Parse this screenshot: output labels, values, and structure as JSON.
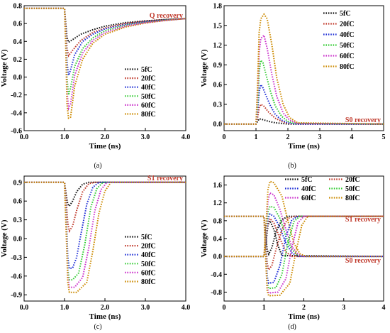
{
  "series_colors": {
    "5fC": "#111111",
    "20fC": "#c0392b",
    "40fC": "#1f2fd6",
    "50fC": "#33cc33",
    "60fC": "#cc33cc",
    "80fC": "#cc8a00"
  },
  "chart_data": [
    {
      "id": "a",
      "type": "line",
      "caption": "(a)",
      "annotation": "Q recovery",
      "xlabel": "Time (ns)",
      "ylabel": "Voltage (V)",
      "xlim": [
        0,
        4
      ],
      "ylim": [
        -0.6,
        0.8
      ],
      "xticks": [
        0,
        1,
        2,
        3,
        4
      ],
      "xtick_labels": [
        "0.0",
        "1.0",
        "2.0",
        "3.0",
        "4.0"
      ],
      "yticks": [
        -0.6,
        -0.4,
        -0.2,
        0,
        0.2,
        0.4,
        0.6,
        0.8
      ],
      "ytick_labels": [
        "-0.6",
        "-0.4",
        "-0.2",
        "0.0",
        "0.2",
        "0.4",
        "0.6",
        "0.8"
      ],
      "legend_columns": 1,
      "series": [
        {
          "name": "5fC",
          "x": [
            0,
            1.0,
            1.03,
            1.06,
            1.1,
            1.2,
            1.4,
            1.7,
            2.0,
            2.5,
            3.0,
            3.5,
            4.0
          ],
          "y": [
            0.77,
            0.77,
            0.6,
            0.45,
            0.39,
            0.42,
            0.48,
            0.53,
            0.57,
            0.61,
            0.63,
            0.645,
            0.655
          ]
        },
        {
          "name": "20fC",
          "x": [
            0,
            1.0,
            1.03,
            1.06,
            1.1,
            1.2,
            1.4,
            1.7,
            2.0,
            2.5,
            3.0,
            3.5,
            4.0
          ],
          "y": [
            0.77,
            0.77,
            0.55,
            0.33,
            0.24,
            0.3,
            0.41,
            0.5,
            0.55,
            0.6,
            0.625,
            0.645,
            0.655
          ]
        },
        {
          "name": "40fC",
          "x": [
            0,
            1.0,
            1.03,
            1.06,
            1.1,
            1.15,
            1.25,
            1.45,
            1.7,
            2.0,
            2.5,
            3.0,
            3.5,
            4.0
          ],
          "y": [
            0.77,
            0.77,
            0.5,
            0.18,
            0.02,
            0.08,
            0.25,
            0.4,
            0.48,
            0.54,
            0.59,
            0.62,
            0.64,
            0.655
          ]
        },
        {
          "name": "50fC",
          "x": [
            0,
            1.0,
            1.03,
            1.06,
            1.1,
            1.15,
            1.25,
            1.45,
            1.7,
            2.0,
            2.5,
            3.0,
            3.5,
            4.0
          ],
          "y": [
            0.77,
            0.77,
            0.45,
            0.0,
            -0.2,
            -0.12,
            0.12,
            0.32,
            0.44,
            0.52,
            0.58,
            0.615,
            0.64,
            0.655
          ]
        },
        {
          "name": "60fC",
          "x": [
            0,
            1.0,
            1.03,
            1.06,
            1.1,
            1.15,
            1.25,
            1.45,
            1.7,
            2.0,
            2.5,
            3.0,
            3.5,
            4.0
          ],
          "y": [
            0.77,
            0.77,
            0.4,
            -0.15,
            -0.35,
            -0.3,
            0.02,
            0.27,
            0.41,
            0.5,
            0.57,
            0.61,
            0.635,
            0.655
          ]
        },
        {
          "name": "80fC",
          "x": [
            0,
            1.0,
            1.03,
            1.06,
            1.1,
            1.15,
            1.25,
            1.45,
            1.7,
            2.0,
            2.5,
            3.0,
            3.5,
            4.0
          ],
          "y": [
            0.77,
            0.77,
            0.35,
            -0.3,
            -0.46,
            -0.45,
            -0.1,
            0.2,
            0.38,
            0.48,
            0.56,
            0.605,
            0.635,
            0.655
          ]
        }
      ]
    },
    {
      "id": "b",
      "type": "line",
      "caption": "(b)",
      "annotation": "S0 recovery",
      "xlabel": "Time (ns)",
      "ylabel": "Voltage (V)",
      "xlim": [
        0,
        5
      ],
      "ylim": [
        -0.1,
        1.8
      ],
      "xticks": [
        0,
        1,
        2,
        3,
        4,
        5
      ],
      "xtick_labels": [
        "0",
        "1",
        "2",
        "3",
        "4",
        "5"
      ],
      "yticks": [
        0,
        0.3,
        0.6,
        0.9,
        1.2,
        1.5,
        1.8
      ],
      "ytick_labels": [
        "0.0",
        "0.3",
        "0.6",
        "0.9",
        "1.2",
        "1.5",
        "1.8"
      ],
      "legend_columns": 1,
      "series": [
        {
          "name": "5fC",
          "x": [
            0,
            1.0,
            1.05,
            1.1,
            1.2,
            1.4,
            1.6,
            1.8,
            2.0,
            5.0
          ],
          "y": [
            0,
            0,
            0.04,
            0.08,
            0.07,
            0.04,
            0.02,
            0.01,
            0,
            0
          ]
        },
        {
          "name": "20fC",
          "x": [
            0,
            1.0,
            1.05,
            1.1,
            1.15,
            1.25,
            1.4,
            1.6,
            1.8,
            2.0,
            2.2,
            5.0
          ],
          "y": [
            0,
            0,
            0.1,
            0.25,
            0.3,
            0.27,
            0.18,
            0.09,
            0.04,
            0.01,
            0,
            0
          ]
        },
        {
          "name": "40fC",
          "x": [
            0,
            1.0,
            1.05,
            1.1,
            1.15,
            1.22,
            1.3,
            1.45,
            1.6,
            1.8,
            2.0,
            2.2,
            5.0
          ],
          "y": [
            0,
            0,
            0.2,
            0.5,
            0.6,
            0.55,
            0.45,
            0.28,
            0.15,
            0.06,
            0.02,
            0,
            0
          ]
        },
        {
          "name": "50fC",
          "x": [
            0,
            1.0,
            1.05,
            1.1,
            1.15,
            1.22,
            1.3,
            1.45,
            1.6,
            1.8,
            2.0,
            2.2,
            5.0
          ],
          "y": [
            0,
            0,
            0.3,
            0.8,
            0.97,
            0.93,
            0.78,
            0.5,
            0.28,
            0.12,
            0.04,
            0.01,
            0
          ]
        },
        {
          "name": "60fC",
          "x": [
            0,
            1.0,
            1.05,
            1.1,
            1.15,
            1.25,
            1.35,
            1.5,
            1.65,
            1.85,
            2.05,
            2.3,
            5.0
          ],
          "y": [
            0,
            0,
            0.45,
            1.1,
            1.3,
            1.35,
            1.15,
            0.75,
            0.42,
            0.17,
            0.06,
            0.01,
            0
          ]
        },
        {
          "name": "80fC",
          "x": [
            0,
            1.0,
            1.05,
            1.1,
            1.15,
            1.25,
            1.35,
            1.5,
            1.65,
            1.85,
            2.05,
            2.3,
            5.0
          ],
          "y": [
            0,
            0,
            0.6,
            1.4,
            1.6,
            1.67,
            1.6,
            1.2,
            0.7,
            0.3,
            0.1,
            0.02,
            0
          ]
        }
      ]
    },
    {
      "id": "c",
      "type": "line",
      "caption": "(c)",
      "annotation": "S1 recovery",
      "xlabel": "Time (ns)",
      "ylabel": "Voltage (V)",
      "xlim": [
        0,
        4
      ],
      "ylim": [
        -1.0,
        1.0
      ],
      "xticks": [
        0,
        1,
        2,
        3,
        4
      ],
      "xtick_labels": [
        "0.0",
        "1.0",
        "2.0",
        "3.0",
        "4.0"
      ],
      "yticks": [
        -0.9,
        -0.6,
        -0.3,
        0,
        0.3,
        0.6,
        0.9
      ],
      "ytick_labels": [
        "-0.9",
        "-0.6",
        "-0.3",
        "0.0",
        "0.3",
        "0.6",
        "0.9"
      ],
      "legend_columns": 1,
      "series": [
        {
          "name": "5fC",
          "x": [
            0,
            1.0,
            1.04,
            1.08,
            1.12,
            1.2,
            1.3,
            1.45,
            1.6,
            4.0
          ],
          "y": [
            0.9,
            0.9,
            0.7,
            0.55,
            0.52,
            0.6,
            0.75,
            0.87,
            0.9,
            0.9
          ]
        },
        {
          "name": "20fC",
          "x": [
            0,
            1.0,
            1.04,
            1.08,
            1.12,
            1.2,
            1.3,
            1.45,
            1.6,
            1.75,
            4.0
          ],
          "y": [
            0.9,
            0.9,
            0.6,
            0.25,
            0.12,
            0.2,
            0.45,
            0.75,
            0.88,
            0.9,
            0.9
          ]
        },
        {
          "name": "40fC",
          "x": [
            0,
            1.0,
            1.04,
            1.08,
            1.12,
            1.2,
            1.3,
            1.4,
            1.55,
            1.7,
            1.85,
            4.0
          ],
          "y": [
            0.9,
            0.9,
            0.4,
            -0.3,
            -0.48,
            -0.47,
            -0.3,
            0.05,
            0.55,
            0.82,
            0.9,
            0.9
          ]
        },
        {
          "name": "50fC",
          "x": [
            0,
            1.0,
            1.04,
            1.08,
            1.12,
            1.2,
            1.35,
            1.5,
            1.65,
            1.8,
            1.95,
            4.0
          ],
          "y": [
            0.9,
            0.9,
            0.3,
            -0.5,
            -0.66,
            -0.66,
            -0.55,
            -0.1,
            0.5,
            0.8,
            0.9,
            0.9
          ]
        },
        {
          "name": "60fC",
          "x": [
            0,
            1.0,
            1.04,
            1.08,
            1.12,
            1.25,
            1.45,
            1.6,
            1.75,
            1.9,
            2.05,
            4.0
          ],
          "y": [
            0.9,
            0.9,
            0.2,
            -0.6,
            -0.78,
            -0.78,
            -0.62,
            -0.15,
            0.45,
            0.78,
            0.9,
            0.9
          ]
        },
        {
          "name": "80fC",
          "x": [
            0,
            1.0,
            1.04,
            1.08,
            1.12,
            1.3,
            1.55,
            1.7,
            1.85,
            2.0,
            2.15,
            4.0
          ],
          "y": [
            0.9,
            0.9,
            0.1,
            -0.7,
            -0.86,
            -0.86,
            -0.7,
            -0.2,
            0.4,
            0.76,
            0.9,
            0.9
          ]
        }
      ]
    },
    {
      "id": "d",
      "type": "line",
      "caption": "(d)",
      "annotations": [
        "S1 recovery",
        "S0 recovery"
      ],
      "xlabel": "Time (ns)",
      "ylabel": "Voltage (V)",
      "xlim": [
        0,
        4
      ],
      "ylim": [
        -1.0,
        1.8
      ],
      "xticks": [
        0,
        1,
        2,
        3,
        4
      ],
      "xtick_labels": [
        "0",
        "1",
        "2",
        "3",
        "4"
      ],
      "yticks": [
        -0.8,
        -0.4,
        0,
        0.4,
        0.8,
        1.2,
        1.6
      ],
      "ytick_labels": [
        "-0.8",
        "-0.4",
        "0.0",
        "0.4",
        "0.8",
        "1.2",
        "1.6"
      ],
      "legend_columns": 2,
      "series": [
        {
          "name": "5fC",
          "group": "S0",
          "x": [
            0,
            1.0,
            1.05,
            1.1,
            1.15,
            1.25,
            1.35,
            1.45,
            4.0
          ],
          "y": [
            0,
            0,
            0.3,
            0.7,
            0.8,
            0.6,
            0.25,
            0.02,
            0
          ]
        },
        {
          "name": "20fC",
          "group": "S0",
          "x": [
            0,
            1.0,
            1.05,
            1.1,
            1.15,
            1.25,
            1.4,
            1.55,
            1.7,
            4.0
          ],
          "y": [
            0,
            0,
            0.35,
            0.75,
            0.85,
            0.75,
            0.4,
            0.1,
            0,
            0
          ]
        },
        {
          "name": "40fC",
          "group": "S0",
          "x": [
            0,
            1.0,
            1.05,
            1.1,
            1.15,
            1.25,
            1.4,
            1.55,
            1.7,
            1.85,
            4.0
          ],
          "y": [
            0,
            0,
            0.4,
            0.85,
            0.95,
            0.9,
            0.65,
            0.3,
            0.08,
            0,
            0
          ]
        },
        {
          "name": "50fC",
          "group": "S0",
          "x": [
            0,
            1.0,
            1.05,
            1.1,
            1.15,
            1.25,
            1.4,
            1.55,
            1.7,
            1.85,
            2.0,
            4.0
          ],
          "y": [
            0,
            0,
            0.5,
            1.0,
            1.12,
            1.1,
            0.85,
            0.45,
            0.15,
            0.03,
            0,
            0
          ]
        },
        {
          "name": "60fC",
          "group": "S0",
          "x": [
            0,
            1.0,
            1.05,
            1.1,
            1.15,
            1.25,
            1.4,
            1.55,
            1.7,
            1.85,
            2.0,
            4.0
          ],
          "y": [
            0,
            0,
            0.6,
            1.25,
            1.42,
            1.38,
            1.05,
            0.6,
            0.22,
            0.05,
            0,
            0
          ]
        },
        {
          "name": "80fC",
          "group": "S0",
          "x": [
            0,
            1.0,
            1.05,
            1.1,
            1.15,
            1.25,
            1.45,
            1.6,
            1.75,
            1.9,
            2.05,
            4.0
          ],
          "y": [
            0,
            0,
            0.7,
            1.5,
            1.68,
            1.65,
            1.35,
            0.8,
            0.3,
            0.06,
            0,
            0
          ]
        },
        {
          "name": "5fC",
          "group": "S1",
          "x": [
            0,
            1.0,
            1.04,
            1.08,
            1.12,
            1.2,
            1.3,
            1.45,
            1.6,
            4.0
          ],
          "y": [
            0.9,
            0.9,
            0.5,
            0.15,
            0.05,
            0.2,
            0.55,
            0.82,
            0.9,
            0.9
          ]
        },
        {
          "name": "20fC",
          "group": "S1",
          "x": [
            0,
            1.0,
            1.04,
            1.08,
            1.12,
            1.2,
            1.3,
            1.45,
            1.6,
            1.75,
            4.0
          ],
          "y": [
            0.9,
            0.9,
            0.4,
            -0.15,
            -0.3,
            -0.2,
            0.15,
            0.6,
            0.85,
            0.9,
            0.9
          ]
        },
        {
          "name": "40fC",
          "group": "S1",
          "x": [
            0,
            1.0,
            1.04,
            1.08,
            1.12,
            1.25,
            1.4,
            1.55,
            1.7,
            1.85,
            4.0
          ],
          "y": [
            0.9,
            0.9,
            0.3,
            -0.45,
            -0.6,
            -0.58,
            -0.2,
            0.45,
            0.82,
            0.9,
            0.9
          ]
        },
        {
          "name": "50fC",
          "group": "S1",
          "x": [
            0,
            1.0,
            1.04,
            1.08,
            1.12,
            1.3,
            1.45,
            1.6,
            1.75,
            1.9,
            4.0
          ],
          "y": [
            0.9,
            0.9,
            0.2,
            -0.6,
            -0.72,
            -0.7,
            -0.4,
            0.3,
            0.78,
            0.9,
            0.9
          ]
        },
        {
          "name": "60fC",
          "group": "S1",
          "x": [
            0,
            1.0,
            1.04,
            1.08,
            1.12,
            1.35,
            1.55,
            1.7,
            1.85,
            2.0,
            4.0
          ],
          "y": [
            0.9,
            0.9,
            0.1,
            -0.7,
            -0.82,
            -0.8,
            -0.5,
            0.2,
            0.75,
            0.9,
            0.9
          ]
        },
        {
          "name": "80fC",
          "group": "S1",
          "x": [
            0,
            1.0,
            1.04,
            1.08,
            1.12,
            1.4,
            1.65,
            1.8,
            1.95,
            2.1,
            4.0
          ],
          "y": [
            0.9,
            0.9,
            0.0,
            -0.78,
            -0.88,
            -0.87,
            -0.6,
            0.1,
            0.7,
            0.9,
            0.9
          ]
        }
      ]
    }
  ]
}
